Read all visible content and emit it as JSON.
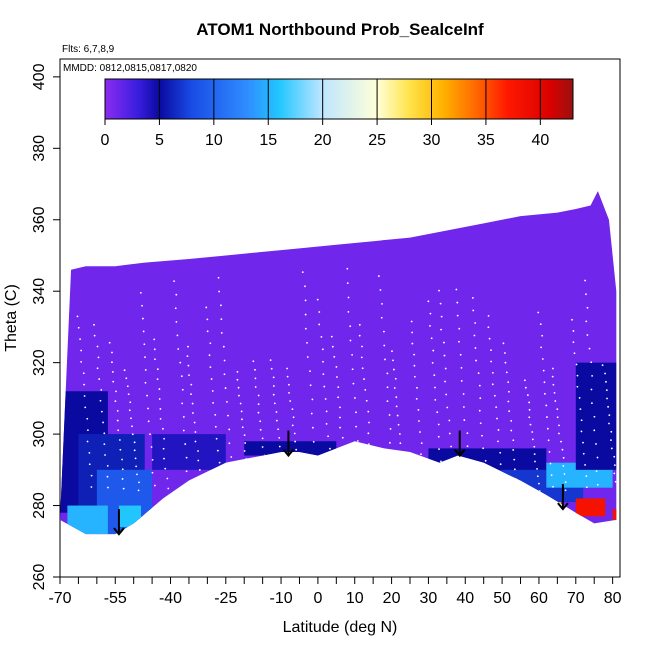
{
  "chart_data": {
    "type": "heatmap",
    "title": "ATOM1 Northbound Prob_SealceInf",
    "flights_text": "Flts: 6,7,8,9",
    "dates_text": "MMDD: 0812,0815,0817,0820",
    "xlabel": "Latitude (deg N)",
    "ylabel": "Theta (C)",
    "xlim": [
      -70,
      82
    ],
    "ylim": [
      260,
      405
    ],
    "x_tick_labels": [
      {
        "value": -70,
        "label": "-70"
      },
      {
        "value": -55,
        "label": "-55"
      },
      {
        "value": -40,
        "label": "-40"
      },
      {
        "value": -25,
        "label": "-25"
      },
      {
        "value": -10,
        "label": "-10"
      },
      {
        "value": 0,
        "label": "0"
      },
      {
        "value": 10,
        "label": "10"
      },
      {
        "value": 20,
        "label": "20"
      },
      {
        "value": 30,
        "label": "30"
      },
      {
        "value": 40,
        "label": "40"
      },
      {
        "value": 50,
        "label": "50"
      },
      {
        "value": 60,
        "label": "60"
      },
      {
        "value": 70,
        "label": "70"
      },
      {
        "value": 80,
        "label": "80"
      }
    ],
    "y_tick_labels": [
      {
        "value": 260,
        "label": "260"
      },
      {
        "value": 280,
        "label": "280"
      },
      {
        "value": 300,
        "label": "300"
      },
      {
        "value": 320,
        "label": "320"
      },
      {
        "value": 340,
        "label": "340"
      },
      {
        "value": 360,
        "label": "360"
      },
      {
        "value": 380,
        "label": "380"
      },
      {
        "value": 400,
        "label": "400"
      }
    ],
    "colorbar": {
      "range": [
        0,
        43
      ],
      "tick_labels": [
        {
          "value": 0,
          "label": "0"
        },
        {
          "value": 5,
          "label": "5"
        },
        {
          "value": 10,
          "label": "10"
        },
        {
          "value": 15,
          "label": "15"
        },
        {
          "value": 20,
          "label": "20"
        },
        {
          "value": 25,
          "label": "25"
        },
        {
          "value": 30,
          "label": "30"
        },
        {
          "value": 35,
          "label": "35"
        },
        {
          "value": 40,
          "label": "40"
        }
      ],
      "color_stops": [
        {
          "value": 0,
          "color": "#8b2cf0"
        },
        {
          "value": 3,
          "color": "#3a1ee0"
        },
        {
          "value": 5,
          "color": "#0a0aa0"
        },
        {
          "value": 8,
          "color": "#1a4ce6"
        },
        {
          "value": 13,
          "color": "#2f8cff"
        },
        {
          "value": 16,
          "color": "#22c6ff"
        },
        {
          "value": 20,
          "color": "#bfe6ff"
        },
        {
          "value": 25,
          "color": "#ffffd8"
        },
        {
          "value": 28,
          "color": "#ffe34a"
        },
        {
          "value": 31,
          "color": "#ffb300"
        },
        {
          "value": 34,
          "color": "#ff6a00"
        },
        {
          "value": 37,
          "color": "#ff1800"
        },
        {
          "value": 41,
          "color": "#d80000"
        },
        {
          "value": 43,
          "color": "#9b1010"
        }
      ]
    },
    "data_top_boundary": [
      [
        -67,
        346
      ],
      [
        -63,
        347
      ],
      [
        -55,
        347
      ],
      [
        -47,
        348
      ],
      [
        -35,
        349
      ],
      [
        -25,
        350
      ],
      [
        -15,
        351
      ],
      [
        -5,
        352
      ],
      [
        5,
        353
      ],
      [
        15,
        354
      ],
      [
        25,
        355
      ],
      [
        35,
        357
      ],
      [
        45,
        359
      ],
      [
        55,
        361
      ],
      [
        65,
        362
      ],
      [
        70,
        363
      ],
      [
        74,
        364
      ],
      [
        76,
        368
      ],
      [
        79,
        360
      ],
      [
        81,
        340
      ],
      [
        81,
        305
      ]
    ],
    "data_bottom_boundary": [
      [
        -70,
        276
      ],
      [
        -63,
        272
      ],
      [
        -55,
        272
      ],
      [
        -50,
        275
      ],
      [
        -42,
        282
      ],
      [
        -35,
        287
      ],
      [
        -25,
        292
      ],
      [
        -10,
        295
      ],
      [
        -5,
        295
      ],
      [
        0,
        294
      ],
      [
        5,
        296
      ],
      [
        10,
        298
      ],
      [
        18,
        296
      ],
      [
        25,
        295
      ],
      [
        33,
        292
      ],
      [
        38,
        294
      ],
      [
        45,
        292
      ],
      [
        55,
        287
      ],
      [
        62,
        283
      ],
      [
        70,
        278
      ],
      [
        75,
        275
      ],
      [
        81,
        276
      ]
    ],
    "background_value": 1,
    "value_patches": [
      {
        "lat": [
          -70,
          -57
        ],
        "theta": [
          278,
          312
        ],
        "value": 5
      },
      {
        "lat": [
          -65,
          -47
        ],
        "theta": [
          275,
          300
        ],
        "value": 6
      },
      {
        "lat": [
          -60,
          -45
        ],
        "theta": [
          272,
          290
        ],
        "value": 9
      },
      {
        "lat": [
          -68,
          -57
        ],
        "theta": [
          272,
          280
        ],
        "value": 15
      },
      {
        "lat": [
          -54,
          -48
        ],
        "theta": [
          274,
          280
        ],
        "value": 16
      },
      {
        "lat": [
          -45,
          -25
        ],
        "theta": [
          290,
          300
        ],
        "value": 4
      },
      {
        "lat": [
          -20,
          5
        ],
        "theta": [
          294,
          298
        ],
        "value": 5
      },
      {
        "lat": [
          30,
          62
        ],
        "theta": [
          288,
          296
        ],
        "value": 5
      },
      {
        "lat": [
          48,
          72
        ],
        "theta": [
          281,
          290
        ],
        "value": 7
      },
      {
        "lat": [
          62,
          80
        ],
        "theta": [
          285,
          292
        ],
        "value": 15
      },
      {
        "lat": [
          70,
          81
        ],
        "theta": [
          290,
          320
        ],
        "value": 5
      },
      {
        "lat": [
          70,
          78
        ],
        "theta": [
          277,
          282
        ],
        "value": 38
      },
      {
        "lat": [
          62,
          66
        ],
        "theta": [
          279,
          281
        ],
        "value": 31
      },
      {
        "lat": [
          80,
          81.5
        ],
        "theta": [
          276,
          279
        ],
        "value": 38
      },
      {
        "lat": [
          -70,
          -69
        ],
        "theta": [
          272,
          274
        ],
        "value": 29
      }
    ],
    "arrows": [
      {
        "lat": -54,
        "theta_start": 279,
        "theta_end": 272
      },
      {
        "lat": -8,
        "theta_start": 301,
        "theta_end": 294
      },
      {
        "lat": 38.5,
        "theta_start": 301,
        "theta_end": 294
      },
      {
        "lat": 66.5,
        "theta_start": 286,
        "theta_end": 279
      }
    ]
  }
}
